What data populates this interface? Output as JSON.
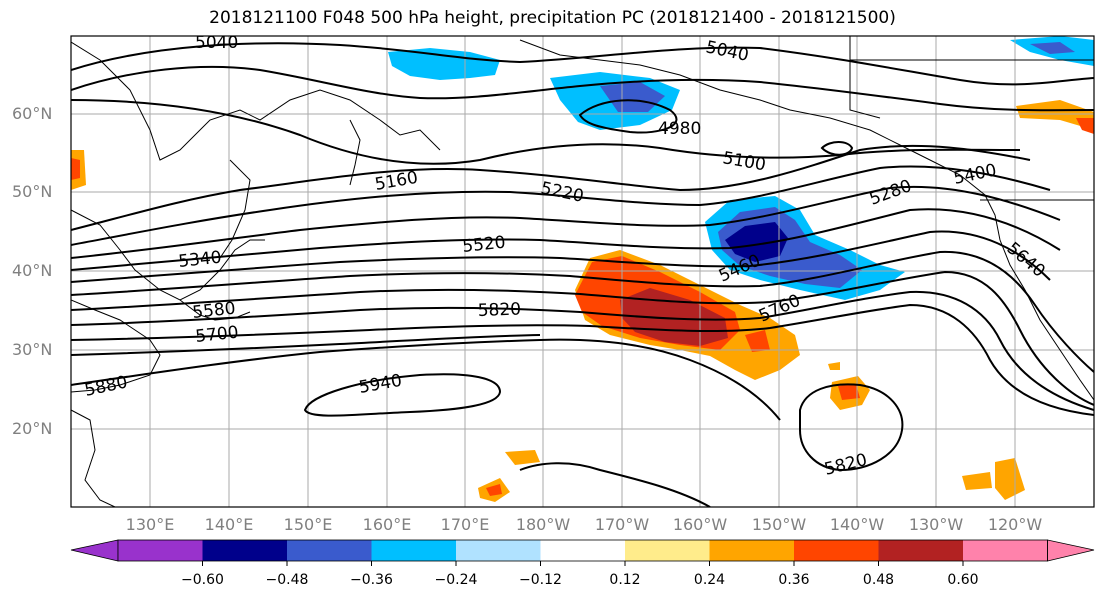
{
  "title": "2018121100 F048 500 hPa height, precipitation PC (2018121400 - 2018121500)",
  "lat_labels": [
    "60°N",
    "50°N",
    "40°N",
    "30°N",
    "20°N"
  ],
  "lon_labels": [
    "130°E",
    "140°E",
    "150°E",
    "160°E",
    "170°E",
    "180°W",
    "170°W",
    "160°W",
    "150°W",
    "140°W",
    "130°W",
    "120°W"
  ],
  "contour_labels": [
    "5040",
    "5040",
    "4980",
    "5100",
    "5160",
    "5220",
    "5280",
    "5400",
    "5340",
    "5520",
    "5460",
    "5640",
    "5580",
    "5700",
    "5820",
    "5760",
    "5880",
    "5940",
    "5820"
  ],
  "colorbar": {
    "ticks": [
      "−0.60",
      "−0.48",
      "−0.36",
      "−0.24",
      "−0.12",
      "0.12",
      "0.24",
      "0.36",
      "0.48",
      "0.60"
    ],
    "colors": [
      "#9932cc",
      "#00008b",
      "#3a5bcd",
      "#00bfff",
      "#b0e2ff",
      "#ffffff",
      "#ffec8b",
      "#ffa500",
      "#ff4500",
      "#b22222",
      "#ff82ab"
    ]
  }
}
